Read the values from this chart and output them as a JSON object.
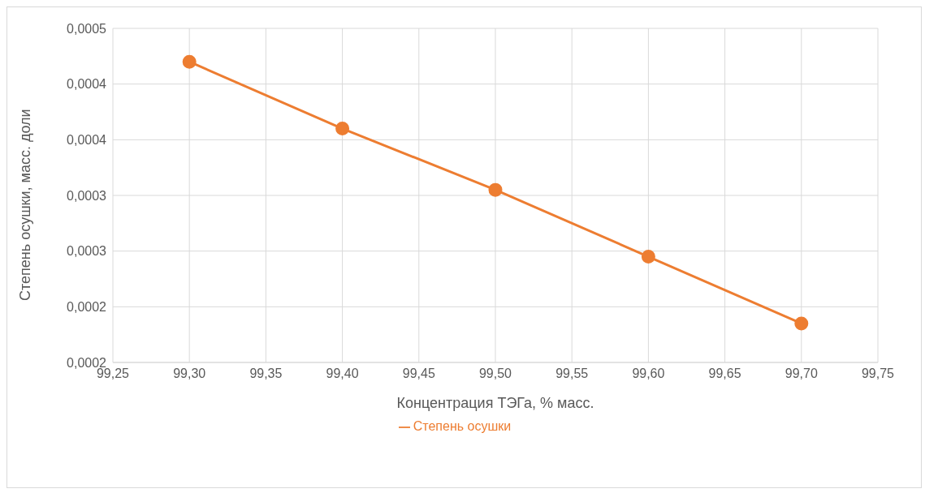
{
  "chart_data": {
    "type": "line",
    "xlabel": "Концентрация ТЭГа, % масс.",
    "ylabel": "Степень осушки, масс. доли",
    "x": [
      99.3,
      99.4,
      99.5,
      99.6,
      99.7
    ],
    "series": [
      {
        "name": "Степень осушки",
        "color": "#ed7d31",
        "values": [
          0.00042,
          0.00036,
          0.000305,
          0.000245,
          0.000185
        ]
      }
    ],
    "xlim": [
      99.25,
      99.75
    ],
    "xticks": [
      {
        "value": 99.25,
        "label": "99,25"
      },
      {
        "value": 99.3,
        "label": "99,30"
      },
      {
        "value": 99.35,
        "label": "99,35"
      },
      {
        "value": 99.4,
        "label": "99,40"
      },
      {
        "value": 99.45,
        "label": "99,45"
      },
      {
        "value": 99.5,
        "label": "99,50"
      },
      {
        "value": 99.55,
        "label": "99,55"
      },
      {
        "value": 99.6,
        "label": "99,60"
      },
      {
        "value": 99.65,
        "label": "99,65"
      },
      {
        "value": 99.7,
        "label": "99,70"
      },
      {
        "value": 99.75,
        "label": "99,75"
      }
    ],
    "ylim": [
      0.00015,
      0.00045
    ],
    "yticks": [
      {
        "value": 0.00015,
        "label": "0,0002"
      },
      {
        "value": 0.0002,
        "label": "0,0002"
      },
      {
        "value": 0.00025,
        "label": "0,0003"
      },
      {
        "value": 0.0003,
        "label": "0,0003"
      },
      {
        "value": 0.00035,
        "label": "0,0004"
      },
      {
        "value": 0.0004,
        "label": "0,0004"
      },
      {
        "value": 0.00045,
        "label": "0,0005"
      }
    ],
    "grid": true,
    "legend": "bottom",
    "marker": "circle",
    "line_style": "solid"
  }
}
